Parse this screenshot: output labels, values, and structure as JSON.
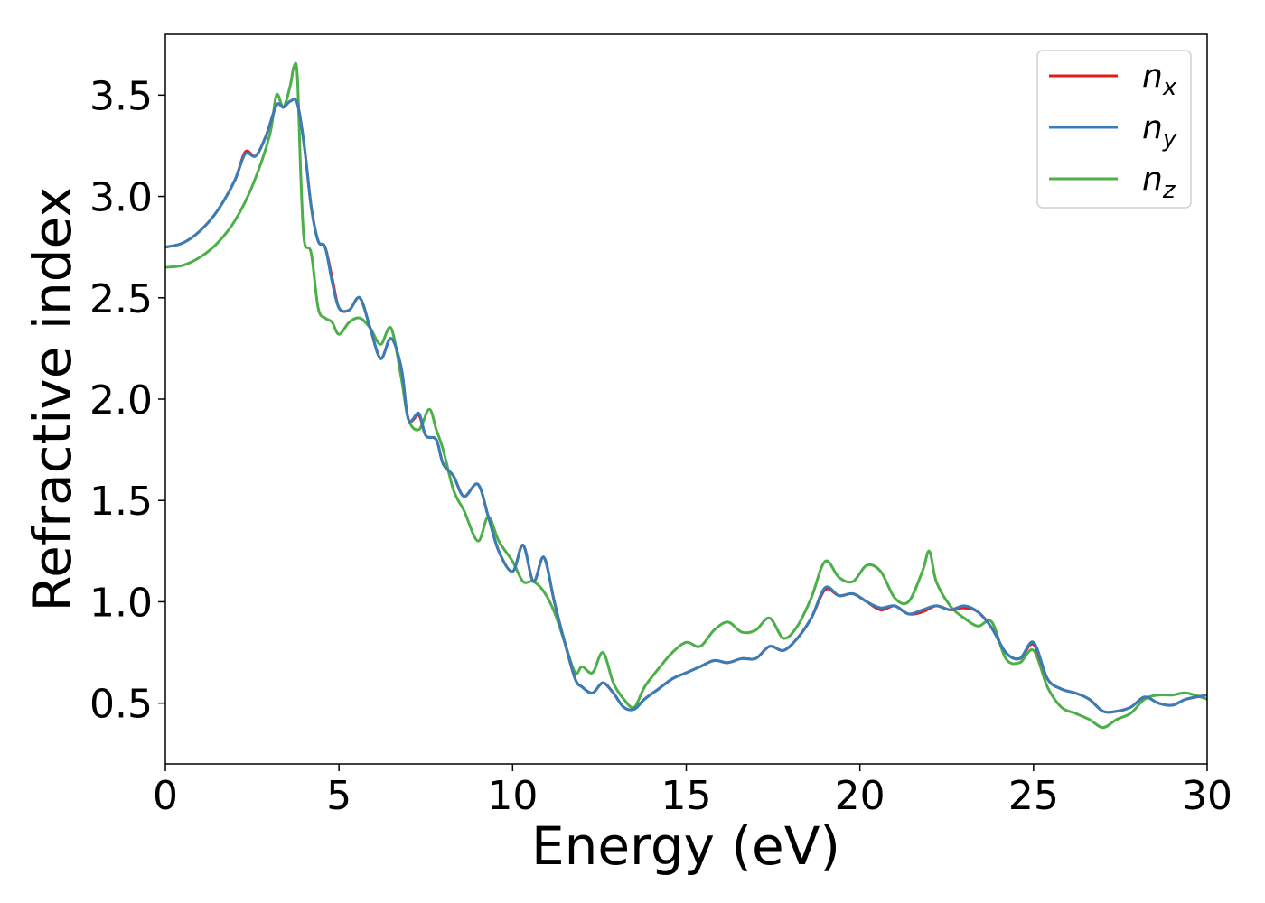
{
  "chart_data": {
    "type": "line",
    "xlabel": "Energy (eV)",
    "ylabel": "Refractive index",
    "xlim": [
      0,
      30
    ],
    "ylim": [
      0.2,
      3.8
    ],
    "xticks": [
      0,
      5,
      10,
      15,
      20,
      25,
      30
    ],
    "xtick_labels": [
      "0",
      "5",
      "10",
      "15",
      "20",
      "25",
      "30"
    ],
    "yticks": [
      0.5,
      1.0,
      1.5,
      2.0,
      2.5,
      3.0,
      3.5
    ],
    "ytick_labels": [
      "0.5",
      "1.0",
      "1.5",
      "2.0",
      "2.5",
      "3.0",
      "3.5"
    ],
    "grid": false,
    "legend_position": "top-right",
    "series": [
      {
        "name": "n",
        "subscript": "x",
        "color": "#e41a1c",
        "x": [
          0,
          0.5,
          1.0,
          1.5,
          2.0,
          2.3,
          2.6,
          2.9,
          3.2,
          3.4,
          3.6,
          3.8,
          4.0,
          4.2,
          4.4,
          4.6,
          4.8,
          5.0,
          5.3,
          5.6,
          5.9,
          6.2,
          6.5,
          6.8,
          7.0,
          7.3,
          7.5,
          7.8,
          8.0,
          8.3,
          8.6,
          9.0,
          9.3,
          9.6,
          10.0,
          10.3,
          10.6,
          10.9,
          11.2,
          11.5,
          11.8,
          12.0,
          12.3,
          12.6,
          12.9,
          13.2,
          13.5,
          13.8,
          14.2,
          14.6,
          15.0,
          15.4,
          15.8,
          16.2,
          16.6,
          17.0,
          17.4,
          17.8,
          18.2,
          18.6,
          19.0,
          19.4,
          19.8,
          20.2,
          20.6,
          21.0,
          21.4,
          21.8,
          22.2,
          22.6,
          23.0,
          23.4,
          23.8,
          24.2,
          24.6,
          25.0,
          25.4,
          25.8,
          26.2,
          26.6,
          27.0,
          27.4,
          27.8,
          28.2,
          28.6,
          29.0,
          29.4,
          30.0
        ],
        "y": [
          2.75,
          2.77,
          2.83,
          2.93,
          3.08,
          3.22,
          3.2,
          3.3,
          3.45,
          3.44,
          3.47,
          3.46,
          3.25,
          2.95,
          2.78,
          2.75,
          2.6,
          2.45,
          2.44,
          2.5,
          2.35,
          2.2,
          2.3,
          2.15,
          1.9,
          1.92,
          1.82,
          1.8,
          1.68,
          1.62,
          1.52,
          1.58,
          1.42,
          1.25,
          1.15,
          1.28,
          1.1,
          1.22,
          1.0,
          0.8,
          0.62,
          0.58,
          0.55,
          0.6,
          0.55,
          0.48,
          0.47,
          0.52,
          0.57,
          0.62,
          0.65,
          0.68,
          0.71,
          0.7,
          0.72,
          0.72,
          0.78,
          0.76,
          0.82,
          0.92,
          1.06,
          1.03,
          1.04,
          1.0,
          0.96,
          0.98,
          0.94,
          0.95,
          0.98,
          0.96,
          0.97,
          0.95,
          0.87,
          0.75,
          0.72,
          0.79,
          0.62,
          0.57,
          0.55,
          0.52,
          0.46,
          0.46,
          0.48,
          0.53,
          0.5,
          0.49,
          0.52,
          0.54
        ]
      },
      {
        "name": "n",
        "subscript": "y",
        "color": "#377eb8",
        "x": [
          0,
          0.5,
          1.0,
          1.5,
          2.0,
          2.3,
          2.6,
          2.9,
          3.2,
          3.4,
          3.6,
          3.8,
          4.0,
          4.2,
          4.4,
          4.6,
          4.8,
          5.0,
          5.3,
          5.6,
          5.9,
          6.2,
          6.5,
          6.8,
          7.0,
          7.3,
          7.5,
          7.8,
          8.0,
          8.3,
          8.6,
          9.0,
          9.3,
          9.6,
          10.0,
          10.3,
          10.6,
          10.9,
          11.2,
          11.5,
          11.8,
          12.0,
          12.3,
          12.6,
          12.9,
          13.2,
          13.5,
          13.8,
          14.2,
          14.6,
          15.0,
          15.4,
          15.8,
          16.2,
          16.6,
          17.0,
          17.4,
          17.8,
          18.2,
          18.6,
          19.0,
          19.4,
          19.8,
          20.2,
          20.6,
          21.0,
          21.4,
          21.8,
          22.2,
          22.6,
          23.0,
          23.4,
          23.8,
          24.2,
          24.6,
          25.0,
          25.4,
          25.8,
          26.2,
          26.6,
          27.0,
          27.4,
          27.8,
          28.2,
          28.6,
          29.0,
          29.4,
          30.0
        ],
        "y": [
          2.75,
          2.77,
          2.83,
          2.93,
          3.08,
          3.21,
          3.2,
          3.3,
          3.45,
          3.44,
          3.47,
          3.46,
          3.25,
          2.95,
          2.78,
          2.75,
          2.58,
          2.45,
          2.44,
          2.5,
          2.35,
          2.2,
          2.3,
          2.15,
          1.9,
          1.93,
          1.82,
          1.8,
          1.68,
          1.62,
          1.52,
          1.58,
          1.42,
          1.25,
          1.15,
          1.28,
          1.1,
          1.22,
          1.0,
          0.8,
          0.62,
          0.58,
          0.55,
          0.6,
          0.55,
          0.48,
          0.47,
          0.52,
          0.57,
          0.62,
          0.65,
          0.68,
          0.71,
          0.7,
          0.72,
          0.72,
          0.78,
          0.76,
          0.82,
          0.92,
          1.07,
          1.03,
          1.04,
          1.0,
          0.97,
          0.98,
          0.94,
          0.96,
          0.98,
          0.96,
          0.98,
          0.95,
          0.87,
          0.75,
          0.72,
          0.8,
          0.62,
          0.57,
          0.55,
          0.52,
          0.46,
          0.46,
          0.48,
          0.53,
          0.5,
          0.49,
          0.52,
          0.54
        ]
      },
      {
        "name": "n",
        "subscript": "z",
        "color": "#4daf4a",
        "x": [
          0,
          0.5,
          1.0,
          1.5,
          2.0,
          2.5,
          3.0,
          3.2,
          3.4,
          3.6,
          3.7,
          3.8,
          3.9,
          4.0,
          4.2,
          4.4,
          4.6,
          4.8,
          5.0,
          5.3,
          5.6,
          5.9,
          6.2,
          6.5,
          6.8,
          7.0,
          7.3,
          7.6,
          7.8,
          8.0,
          8.3,
          8.6,
          9.0,
          9.3,
          9.6,
          10.0,
          10.3,
          10.6,
          10.9,
          11.2,
          11.5,
          11.8,
          12.0,
          12.3,
          12.6,
          12.9,
          13.2,
          13.5,
          13.8,
          14.2,
          14.6,
          15.0,
          15.4,
          15.8,
          16.2,
          16.6,
          17.0,
          17.4,
          17.8,
          18.2,
          18.6,
          19.0,
          19.4,
          19.8,
          20.2,
          20.6,
          21.0,
          21.4,
          21.8,
          22.0,
          22.2,
          22.6,
          23.0,
          23.4,
          23.8,
          24.2,
          24.6,
          25.0,
          25.4,
          25.8,
          26.2,
          26.6,
          27.0,
          27.4,
          27.8,
          28.2,
          28.6,
          29.0,
          29.4,
          30.0
        ],
        "y": [
          2.65,
          2.66,
          2.7,
          2.77,
          2.88,
          3.05,
          3.3,
          3.5,
          3.44,
          3.55,
          3.64,
          3.6,
          3.1,
          2.78,
          2.72,
          2.45,
          2.4,
          2.38,
          2.32,
          2.38,
          2.4,
          2.35,
          2.27,
          2.35,
          2.1,
          1.9,
          1.85,
          1.95,
          1.85,
          1.75,
          1.55,
          1.45,
          1.3,
          1.42,
          1.3,
          1.2,
          1.1,
          1.1,
          1.05,
          0.95,
          0.8,
          0.65,
          0.68,
          0.65,
          0.75,
          0.6,
          0.52,
          0.48,
          0.58,
          0.67,
          0.75,
          0.8,
          0.78,
          0.86,
          0.9,
          0.85,
          0.86,
          0.92,
          0.82,
          0.88,
          1.02,
          1.2,
          1.12,
          1.1,
          1.18,
          1.15,
          1.02,
          1.0,
          1.15,
          1.25,
          1.1,
          0.98,
          0.92,
          0.88,
          0.9,
          0.72,
          0.7,
          0.76,
          0.58,
          0.48,
          0.45,
          0.42,
          0.38,
          0.42,
          0.45,
          0.52,
          0.54,
          0.54,
          0.55,
          0.52
        ]
      }
    ]
  }
}
